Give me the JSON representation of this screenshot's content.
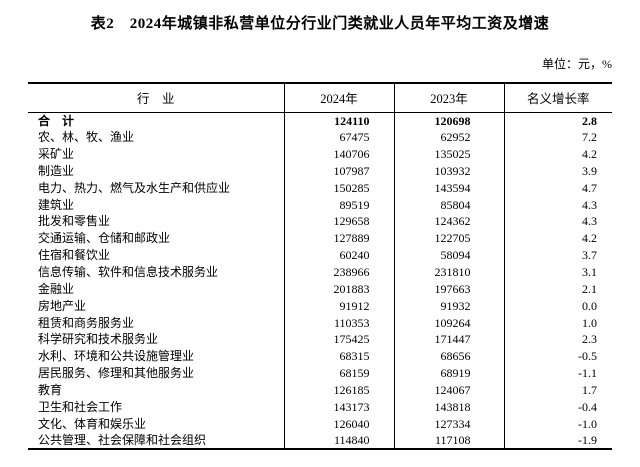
{
  "title": "表2　2024年城镇非私营单位分行业门类就业人员年平均工资及增速",
  "unit_note": "单位：元，%",
  "table": {
    "headers": {
      "industry": "行　业",
      "y2024": "2024年",
      "y2023": "2023年",
      "growth": "名义增长率"
    },
    "rows": [
      {
        "industry": "合　计",
        "y2024": "124110",
        "y2023": "120698",
        "growth": "2.8",
        "bold": true
      },
      {
        "industry": "农、林、牧、渔业",
        "y2024": "67475",
        "y2023": "62952",
        "growth": "7.2",
        "bold": false
      },
      {
        "industry": "采矿业",
        "y2024": "140706",
        "y2023": "135025",
        "growth": "4.2",
        "bold": false
      },
      {
        "industry": "制造业",
        "y2024": "107987",
        "y2023": "103932",
        "growth": "3.9",
        "bold": false
      },
      {
        "industry": "电力、热力、燃气及水生产和供应业",
        "y2024": "150285",
        "y2023": "143594",
        "growth": "4.7",
        "bold": false
      },
      {
        "industry": "建筑业",
        "y2024": "89519",
        "y2023": "85804",
        "growth": "4.3",
        "bold": false
      },
      {
        "industry": "批发和零售业",
        "y2024": "129658",
        "y2023": "124362",
        "growth": "4.3",
        "bold": false
      },
      {
        "industry": "交通运输、仓储和邮政业",
        "y2024": "127889",
        "y2023": "122705",
        "growth": "4.2",
        "bold": false
      },
      {
        "industry": "住宿和餐饮业",
        "y2024": "60240",
        "y2023": "58094",
        "growth": "3.7",
        "bold": false
      },
      {
        "industry": "信息传输、软件和信息技术服务业",
        "y2024": "238966",
        "y2023": "231810",
        "growth": "3.1",
        "bold": false
      },
      {
        "industry": "金融业",
        "y2024": "201883",
        "y2023": "197663",
        "growth": "2.1",
        "bold": false
      },
      {
        "industry": "房地产业",
        "y2024": "91912",
        "y2023": "91932",
        "growth": "0.0",
        "bold": false
      },
      {
        "industry": "租赁和商务服务业",
        "y2024": "110353",
        "y2023": "109264",
        "growth": "1.0",
        "bold": false
      },
      {
        "industry": "科学研究和技术服务业",
        "y2024": "175425",
        "y2023": "171447",
        "growth": "2.3",
        "bold": false
      },
      {
        "industry": "水利、环境和公共设施管理业",
        "y2024": "68315",
        "y2023": "68656",
        "growth": "-0.5",
        "bold": false
      },
      {
        "industry": "居民服务、修理和其他服务业",
        "y2024": "68159",
        "y2023": "68919",
        "growth": "-1.1",
        "bold": false
      },
      {
        "industry": "教育",
        "y2024": "126185",
        "y2023": "124067",
        "growth": "1.7",
        "bold": false
      },
      {
        "industry": "卫生和社会工作",
        "y2024": "143173",
        "y2023": "143818",
        "growth": "-0.4",
        "bold": false
      },
      {
        "industry": "文化、体育和娱乐业",
        "y2024": "126040",
        "y2023": "127334",
        "growth": "-1.0",
        "bold": false
      },
      {
        "industry": "公共管理、社会保障和社会组织",
        "y2024": "114840",
        "y2023": "117108",
        "growth": "-1.9",
        "bold": false
      }
    ]
  }
}
